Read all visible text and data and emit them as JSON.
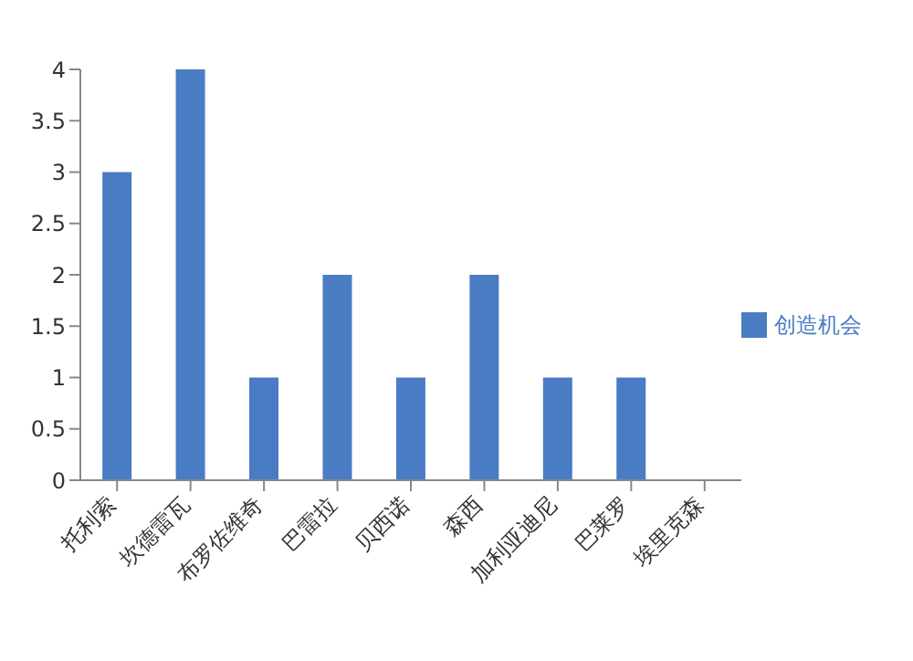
{
  "chart_data": {
    "type": "bar",
    "categories": [
      "托利索",
      "坎德雷瓦",
      "布罗佐维奇",
      "巴雷拉",
      "贝西诺",
      "森西",
      "加利亚迪尼",
      "巴莱罗",
      "埃里克森"
    ],
    "series": [
      {
        "name": "创造机会",
        "color": "#4a7cc4",
        "values": [
          3,
          4,
          1,
          2,
          1,
          2,
          1,
          1,
          0
        ]
      }
    ],
    "ylim": [
      0,
      4
    ],
    "yticks": [
      0,
      {
        "value": 0.5,
        "label": "0.5"
      },
      1,
      {
        "value": 1.5,
        "label": "1.5"
      },
      2,
      {
        "value": 2.5,
        "label": "2.5"
      },
      3,
      {
        "value": 3.5,
        "label": "3.5"
      },
      4
    ],
    "legend": "right"
  }
}
